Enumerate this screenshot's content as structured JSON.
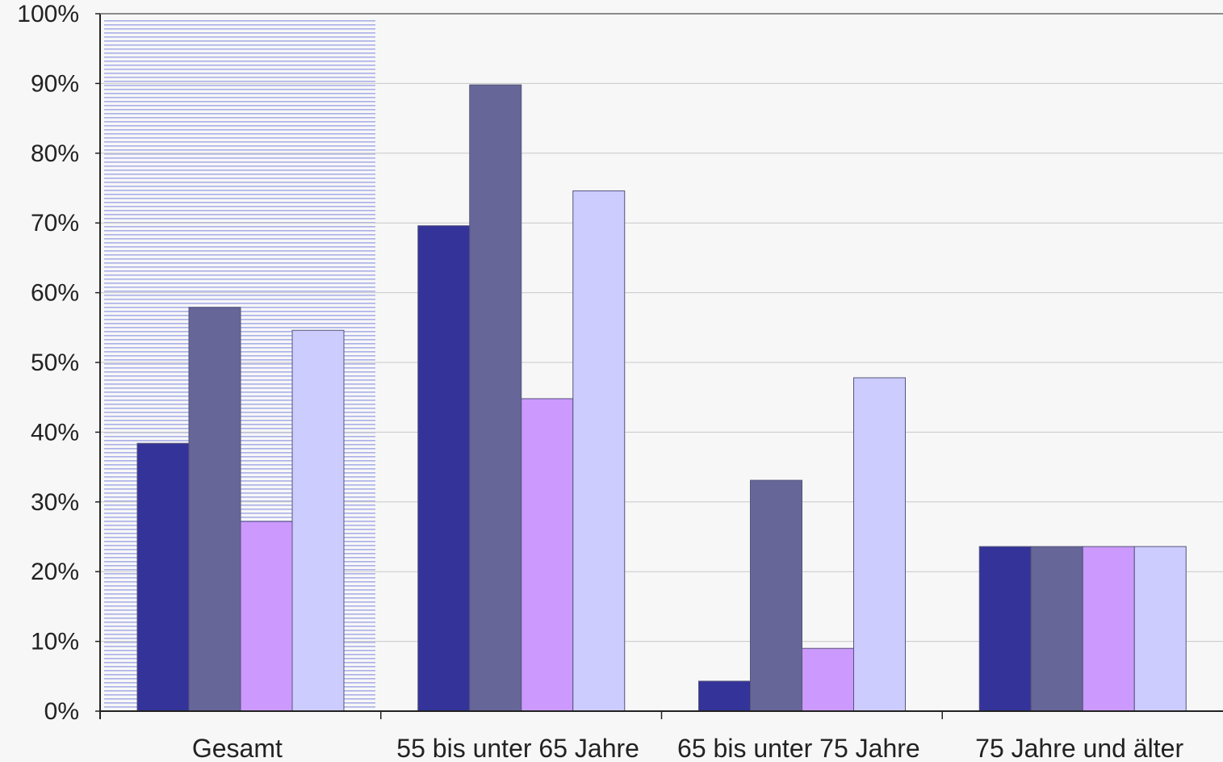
{
  "chart_data": {
    "type": "bar",
    "title": "",
    "xlabel": "",
    "ylabel": "",
    "categories": [
      "Gesamt",
      "55 bis unter 65 Jahre",
      "65 bis unter 75 Jahre",
      "75 Jahre und älter"
    ],
    "series": [
      {
        "values": [
          38.4,
          69.6,
          4.3,
          23.6
        ],
        "color": "#333399"
      },
      {
        "values": [
          57.9,
          89.8,
          33.1,
          23.6
        ],
        "color": "#666699"
      },
      {
        "values": [
          27.2,
          44.8,
          9.0,
          23.6
        ],
        "color": "#cc99ff"
      },
      {
        "values": [
          54.6,
          74.6,
          47.8,
          23.6
        ],
        "color": "#ccccff"
      }
    ],
    "ylim": [
      0,
      100
    ],
    "yticks": [
      "0%",
      "10%",
      "20%",
      "30%",
      "40%",
      "50%",
      "60%",
      "70%",
      "80%",
      "90%",
      "100%"
    ],
    "grid": true,
    "legend": "none",
    "highlighted_category": "Gesamt",
    "colors": {
      "background": "#f7f7f7",
      "gridline": "#c8c8c8",
      "axis": "#222222",
      "highlight_stripe": "#aab0e8"
    }
  }
}
